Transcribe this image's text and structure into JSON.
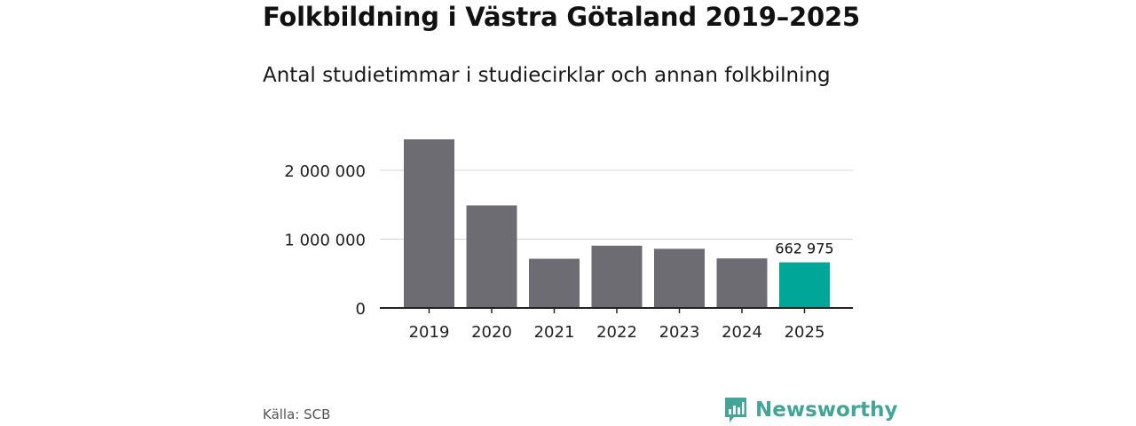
{
  "title": "Folkbildning i Västra Götaland 2019–2025",
  "subtitle": "Antal studietimmar i studiecirklar och annan folkbilning",
  "source": "Källa: SCB",
  "brand": "Newsworthy",
  "colors": {
    "bar": "#6d6c72",
    "highlight": "#00a799",
    "grid": "#d6d6d6",
    "axis": "#222222",
    "brand": "#43a597"
  },
  "chart_data": {
    "type": "bar",
    "title": "Folkbildning i Västra Götaland 2019–2025",
    "subtitle": "Antal studietimmar i studiecirklar och annan folkbilning",
    "xlabel": "",
    "ylabel": "",
    "categories": [
      "2019",
      "2020",
      "2021",
      "2022",
      "2023",
      "2024",
      "2025"
    ],
    "values": [
      2450000,
      1490000,
      715000,
      905000,
      860000,
      720000,
      662975
    ],
    "highlight_index": 6,
    "data_labels": [
      {
        "index": 6,
        "text": "662 975"
      }
    ],
    "yticks": [
      {
        "value": 0,
        "label": "0"
      },
      {
        "value": 1000000,
        "label": "1 000 000"
      },
      {
        "value": 2000000,
        "label": "2 000 000"
      }
    ],
    "ylim": [
      0,
      2450000
    ],
    "grid": true,
    "legend": "none"
  }
}
